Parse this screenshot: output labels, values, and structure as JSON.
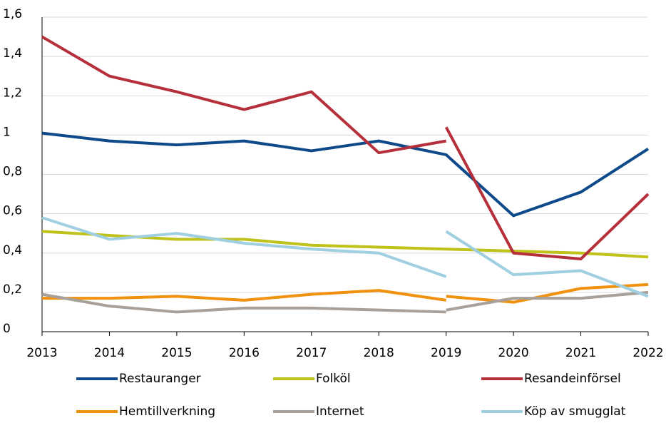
{
  "chart_data": {
    "type": "line",
    "xlim": [
      2013,
      2022
    ],
    "xticks": [
      2013,
      2014,
      2015,
      2016,
      2017,
      2018,
      2019,
      2020,
      2021,
      2022
    ],
    "ylim": [
      0,
      1.6
    ],
    "yticks": [
      0,
      {
        "value": 0.2,
        "label": "0,2"
      },
      {
        "value": 0.4,
        "label": "0,4"
      },
      {
        "value": 0.6,
        "label": "0,6"
      },
      {
        "value": 0.8,
        "label": "0,8"
      },
      1,
      {
        "value": 1.2,
        "label": "1,2"
      },
      {
        "value": 1.4,
        "label": "1,4"
      },
      {
        "value": 1.6,
        "label": "1,6"
      }
    ],
    "grid": true,
    "series": [
      {
        "name": "Restauranger",
        "color": "#0e4a8a",
        "x": [
          2013,
          2014,
          2015,
          2016,
          2017,
          2018,
          2019,
          2020,
          2021,
          2022
        ],
        "values": [
          1.01,
          0.97,
          0.95,
          0.97,
          0.92,
          0.97,
          0.9,
          0.59,
          0.71,
          0.93
        ]
      },
      {
        "name": "Folköl",
        "color": "#bfc21a",
        "x": [
          2013,
          2014,
          2015,
          2016,
          2017,
          2018,
          2019,
          2020,
          2021,
          2022
        ],
        "values": [
          0.51,
          0.49,
          0.47,
          0.47,
          0.44,
          0.43,
          0.42,
          0.41,
          0.4,
          0.38
        ]
      },
      {
        "name": "Resandeinförsel",
        "color": "#b5303a",
        "x": [
          2013,
          2014,
          2015,
          2016,
          2017,
          2018,
          2019,
          null,
          2019,
          2020,
          2021,
          2022
        ],
        "values": [
          1.5,
          1.3,
          1.22,
          1.13,
          1.22,
          0.91,
          0.97,
          null,
          1.04,
          0.4,
          0.37,
          0.7
        ]
      },
      {
        "name": "Hemtillverkning",
        "color": "#f0920f",
        "x": [
          2013,
          2014,
          2015,
          2016,
          2017,
          2018,
          2019,
          null,
          2019,
          2020,
          2021,
          2022
        ],
        "values": [
          0.17,
          0.17,
          0.18,
          0.16,
          0.19,
          0.21,
          0.16,
          null,
          0.18,
          0.15,
          0.22,
          0.24
        ]
      },
      {
        "name": "Internet",
        "color": "#a8a09a",
        "x": [
          2013,
          2014,
          2015,
          2016,
          2017,
          2018,
          2019,
          null,
          2019,
          2020,
          2021,
          2022
        ],
        "values": [
          0.19,
          0.13,
          0.1,
          0.12,
          0.12,
          0.11,
          0.1,
          null,
          0.11,
          0.17,
          0.17,
          0.2
        ]
      },
      {
        "name": "Köp av smugglat",
        "color": "#9fcfe0",
        "x": [
          2013,
          2014,
          2015,
          2016,
          2017,
          2018,
          2019,
          null,
          2019,
          2020,
          2021,
          2022
        ],
        "values": [
          0.58,
          0.47,
          0.5,
          0.45,
          0.42,
          0.4,
          0.28,
          null,
          0.51,
          0.29,
          0.31,
          0.18
        ]
      }
    ]
  }
}
